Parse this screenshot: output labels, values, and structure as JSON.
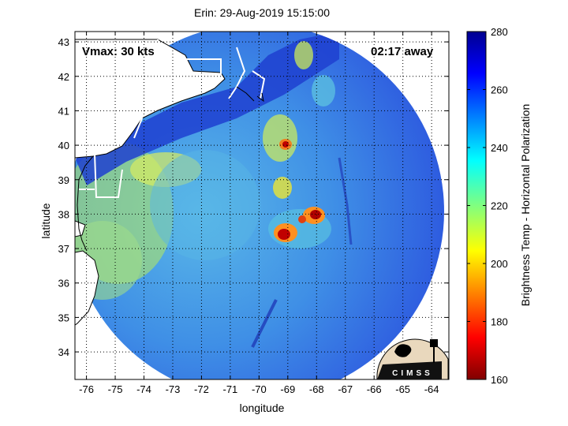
{
  "title": "Erin: 29-Aug-2019 15:15:00",
  "xlabel": "longitude",
  "ylabel": "latitude",
  "vmax_label": "Vmax: 30 kts",
  "time_away_label": "02:17 away",
  "colorbar": {
    "label": "Brightness Temp - Horizontal Polarization",
    "min": 160,
    "max": 280,
    "ticks": [
      "280",
      "260",
      "240",
      "220",
      "200",
      "180",
      "160"
    ],
    "tick_values": [
      280,
      260,
      240,
      220,
      200,
      180,
      160
    ],
    "colormap": "jet"
  },
  "x_ticks": [
    "-76",
    "-75",
    "-74",
    "-73",
    "-72",
    "-71",
    "-70",
    "-69",
    "-68",
    "-67",
    "-66",
    "-65",
    "-64"
  ],
  "x_tick_values": [
    -76,
    -75,
    -74,
    -73,
    -72,
    -71,
    -70,
    -69,
    -68,
    -67,
    -66,
    -65,
    -64
  ],
  "y_ticks": [
    "43",
    "42",
    "41",
    "40",
    "39",
    "38",
    "37",
    "36",
    "35",
    "34"
  ],
  "y_tick_values": [
    43,
    42,
    41,
    40,
    39,
    38,
    37,
    36,
    35,
    34
  ],
  "xlim": [
    -76.4,
    -63.4
  ],
  "ylim": [
    33.2,
    43.3
  ],
  "grid": true,
  "grid_style": "dotted",
  "logo_text": "CIMSS",
  "colors": {
    "ocean_base": "#2f6fe0",
    "land_fill": "#ffffff",
    "land_border": "#000000",
    "state_border": "#ffffff"
  }
}
